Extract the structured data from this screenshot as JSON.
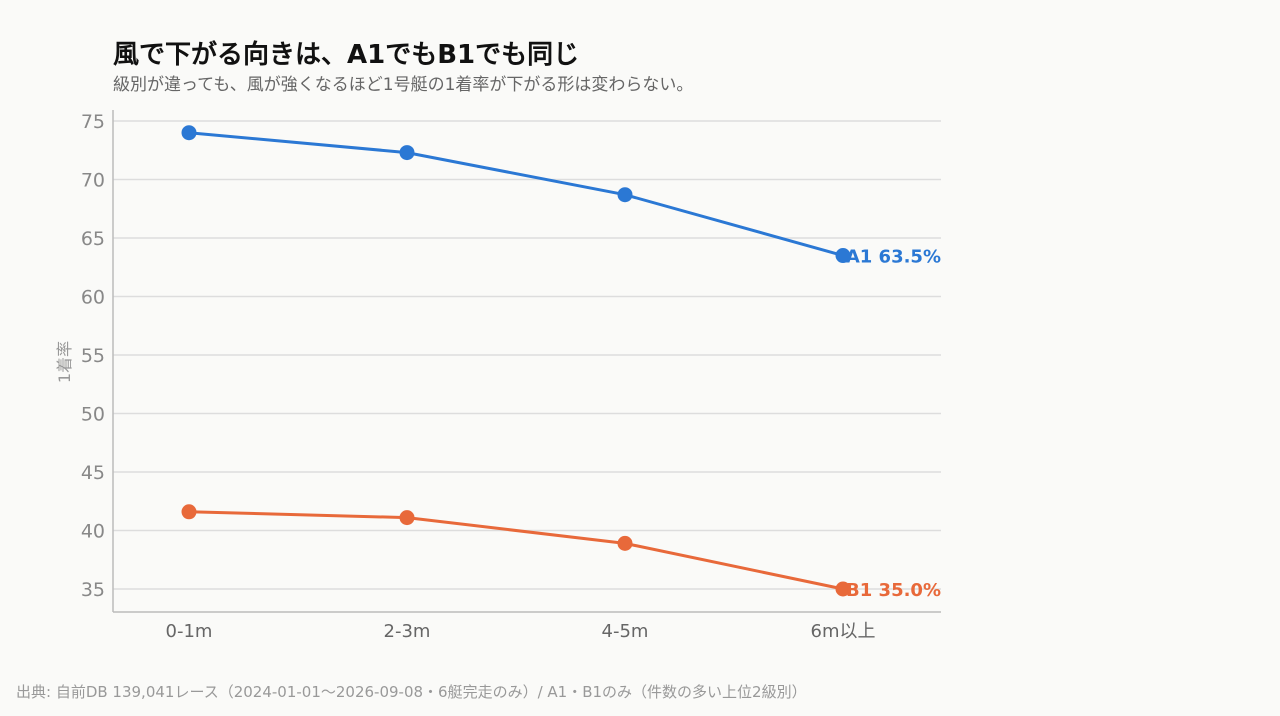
{
  "header": {
    "title": "風で下がる向きは、A1でもB1でも同じ",
    "subtitle": "級別が違っても、風が強くなるほど1号艇の1着率が下がる形は変わらない。"
  },
  "footer": {
    "source": "出典: 自前DB 139,041レース（2024-01-01〜2026-09-08・6艇完走のみ）/ A1・B1のみ（件数の多い上位2級別）"
  },
  "chart_data": {
    "type": "line",
    "categories": [
      "0-1m",
      "2-3m",
      "4-5m",
      "6m以上"
    ],
    "ylabel": "1着率",
    "ylim": [
      33,
      76
    ],
    "yticks": [
      35,
      40,
      45,
      50,
      55,
      60,
      65,
      70,
      75
    ],
    "grid": true,
    "series": [
      {
        "name": "A1",
        "color": "#2b78d4",
        "values": [
          74.0,
          72.3,
          68.7,
          63.5
        ],
        "end_label": "A1 63.5%"
      },
      {
        "name": "B1",
        "color": "#e8693a",
        "values": [
          41.6,
          41.1,
          38.9,
          35.0
        ],
        "end_label": "B1 35.0%"
      }
    ]
  }
}
